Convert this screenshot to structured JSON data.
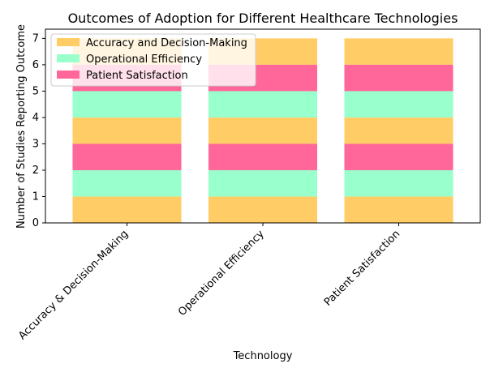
{
  "chart_data": {
    "type": "bar",
    "stacked": true,
    "title": "Outcomes of Adoption for Different Healthcare Technologies",
    "xlabel": "Technology",
    "ylabel": "Number of Studies Reporting Outcome",
    "categories": [
      "Accuracy & Decision-Making",
      "Operational Efficiency",
      "Patient Satisfaction"
    ],
    "ylim": [
      0,
      7.35
    ],
    "yticks": [
      0,
      1,
      2,
      3,
      4,
      5,
      6,
      7
    ],
    "series": [
      {
        "name": "Accuracy and Decision-Making",
        "color": "#FFCC66",
        "segments": [
          [
            [
              0,
              1
            ],
            [
              3,
              4
            ],
            [
              6,
              7
            ]
          ],
          [
            [
              0,
              1
            ],
            [
              3,
              4
            ],
            [
              6,
              7
            ]
          ],
          [
            [
              0,
              1
            ],
            [
              3,
              4
            ],
            [
              6,
              7
            ]
          ]
        ]
      },
      {
        "name": "Operational Efficiency",
        "color": "#99FFCC",
        "segments": [
          [
            [
              1,
              2
            ],
            [
              4,
              5
            ]
          ],
          [
            [
              1,
              2
            ],
            [
              4,
              5
            ]
          ],
          [
            [
              1,
              2
            ],
            [
              4,
              5
            ]
          ]
        ]
      },
      {
        "name": "Patient Satisfaction",
        "color": "#FF6699",
        "segments": [
          [
            [
              2,
              3
            ],
            [
              5,
              6
            ]
          ],
          [
            [
              2,
              3
            ],
            [
              5,
              6
            ]
          ],
          [
            [
              2,
              3
            ],
            [
              5,
              6
            ]
          ]
        ]
      }
    ],
    "grid": false,
    "legend": "upper-left"
  }
}
